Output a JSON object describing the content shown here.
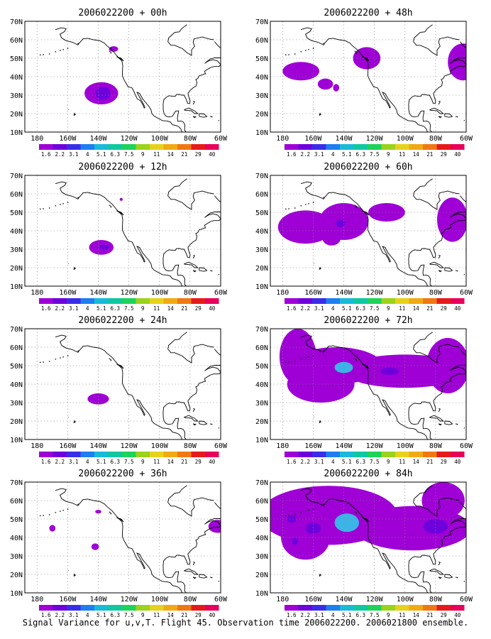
{
  "panels": [
    {
      "title": "2006022200 + 00h",
      "blobs": [
        {
          "lon": -138,
          "lat": 31,
          "rx": 11,
          "ry": 6,
          "level": 1
        },
        {
          "lon": -137,
          "lat": 31,
          "rx": 5,
          "ry": 3.5,
          "level": 2
        },
        {
          "lon": -130,
          "lat": 55,
          "rx": 3,
          "ry": 1.5,
          "level": 1
        }
      ]
    },
    {
      "title": "2006022200 + 48h",
      "blobs": [
        {
          "lon": -168,
          "lat": 43,
          "rx": 12,
          "ry": 5,
          "level": 1
        },
        {
          "lon": -152,
          "lat": 36,
          "rx": 5,
          "ry": 3,
          "level": 1
        },
        {
          "lon": -125,
          "lat": 50,
          "rx": 9,
          "ry": 6,
          "level": 1
        },
        {
          "lon": -145,
          "lat": 34,
          "rx": 2,
          "ry": 2,
          "level": 1
        },
        {
          "lon": -62,
          "lat": 48,
          "rx": 10,
          "ry": 10,
          "level": 1
        }
      ]
    },
    {
      "title": "2006022200 + 12h",
      "blobs": [
        {
          "lon": -138,
          "lat": 31,
          "rx": 8,
          "ry": 4,
          "level": 1
        },
        {
          "lon": -136,
          "lat": 31,
          "rx": 3,
          "ry": 1.5,
          "level": 2
        },
        {
          "lon": -125,
          "lat": 57,
          "rx": 1,
          "ry": 0.8,
          "level": 1
        }
      ]
    },
    {
      "title": "2006022200 + 60h",
      "blobs": [
        {
          "lon": -165,
          "lat": 42,
          "rx": 18,
          "ry": 9,
          "level": 1
        },
        {
          "lon": -140,
          "lat": 45,
          "rx": 16,
          "ry": 10,
          "level": 1
        },
        {
          "lon": -112,
          "lat": 50,
          "rx": 12,
          "ry": 5,
          "level": 1
        },
        {
          "lon": -148,
          "lat": 36,
          "rx": 6,
          "ry": 4,
          "level": 1
        },
        {
          "lon": -69,
          "lat": 46,
          "rx": 10,
          "ry": 12,
          "level": 1
        },
        {
          "lon": -142,
          "lat": 44,
          "rx": 3,
          "ry": 2,
          "level": 2
        }
      ]
    },
    {
      "title": "2006022200 + 24h",
      "blobs": [
        {
          "lon": -140,
          "lat": 32,
          "rx": 7,
          "ry": 3,
          "level": 1
        }
      ]
    },
    {
      "title": "2006022200 + 72h",
      "blobs": [
        {
          "lon": -170,
          "lat": 55,
          "rx": 12,
          "ry": 15,
          "level": 1
        },
        {
          "lon": -145,
          "lat": 50,
          "rx": 30,
          "ry": 10,
          "level": 1
        },
        {
          "lon": -155,
          "lat": 40,
          "rx": 22,
          "ry": 10,
          "level": 1
        },
        {
          "lon": -100,
          "lat": 47,
          "rx": 40,
          "ry": 9,
          "level": 1
        },
        {
          "lon": -72,
          "lat": 50,
          "rx": 14,
          "ry": 15,
          "level": 1
        },
        {
          "lon": -140,
          "lat": 49,
          "rx": 6,
          "ry": 3,
          "level": 3
        },
        {
          "lon": -110,
          "lat": 47,
          "rx": 6,
          "ry": 2,
          "level": 2
        }
      ]
    },
    {
      "title": "2006022200 + 36h",
      "blobs": [
        {
          "lon": -170,
          "lat": 45,
          "rx": 2,
          "ry": 1.8,
          "level": 1
        },
        {
          "lon": -142,
          "lat": 35,
          "rx": 2.5,
          "ry": 1.8,
          "level": 1
        },
        {
          "lon": -140,
          "lat": 54,
          "rx": 2,
          "ry": 1,
          "level": 1
        },
        {
          "lon": -62,
          "lat": 46,
          "rx": 6,
          "ry": 3.5,
          "level": 1
        }
      ]
    },
    {
      "title": "2006022200 + 84h",
      "blobs": [
        {
          "lon": -150,
          "lat": 52,
          "rx": 45,
          "ry": 16,
          "level": 1
        },
        {
          "lon": -165,
          "lat": 40,
          "rx": 16,
          "ry": 12,
          "level": 1
        },
        {
          "lon": -95,
          "lat": 45,
          "rx": 38,
          "ry": 12,
          "level": 1
        },
        {
          "lon": -75,
          "lat": 60,
          "rx": 14,
          "ry": 10,
          "level": 1
        },
        {
          "lon": -138,
          "lat": 48,
          "rx": 8,
          "ry": 5,
          "level": 3
        },
        {
          "lon": -174,
          "lat": 50,
          "rx": 3,
          "ry": 2,
          "level": 2
        },
        {
          "lon": -172,
          "lat": 38,
          "rx": 2,
          "ry": 2,
          "level": 2
        },
        {
          "lon": -160,
          "lat": 45,
          "rx": 5,
          "ry": 3,
          "level": 2
        },
        {
          "lon": -80,
          "lat": 46,
          "rx": 8,
          "ry": 4,
          "level": 2
        }
      ]
    }
  ],
  "y_ticks": [
    "70N",
    "60N",
    "50N",
    "40N",
    "30N",
    "20N",
    "10N"
  ],
  "x_ticks": [
    "180",
    "160W",
    "140W",
    "120W",
    "100W",
    "80W",
    "60W"
  ],
  "colorbar": {
    "labels": [
      "1.6",
      "2.2",
      "3.1",
      "4",
      "5.1",
      "6.3",
      "7.5",
      "9",
      "11",
      "14",
      "21",
      "29",
      "40"
    ],
    "colors": [
      "#9e00d6",
      "#6e00dc",
      "#3a2de8",
      "#1e7ef0",
      "#19b9d8",
      "#10c8a0",
      "#1ed25a",
      "#9bd21c",
      "#e6d21a",
      "#f0aa14",
      "#f07814",
      "#e61a1a",
      "#e8005a"
    ]
  },
  "fill_levels": [
    "#9e00d6",
    "#6e00dc",
    "#3a2de8"
  ],
  "highlight_color": "#3cb4e6",
  "footer": "Signal Variance for u,v,T. Flight 45. Observation time 2006022200. 2006021800 ensemble."
}
